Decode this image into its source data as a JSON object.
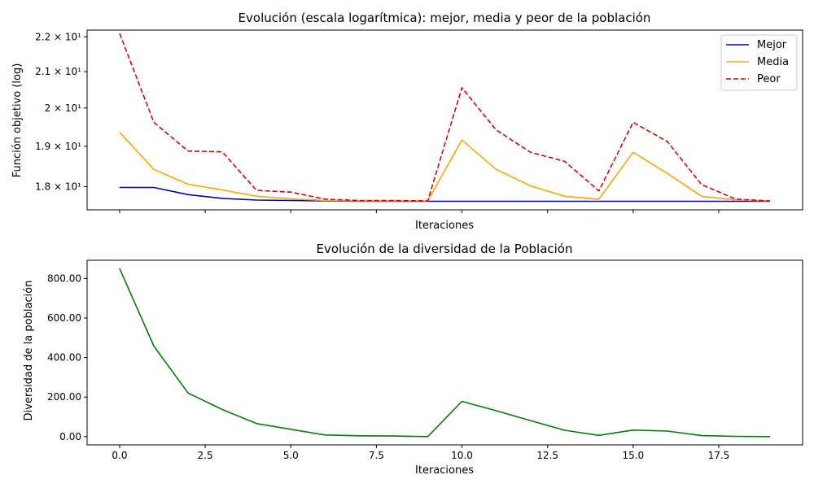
{
  "chart_data": [
    {
      "type": "line",
      "title": "Evolución (escala logarítmica): mejor, media y peor de la población",
      "xlabel": "Iteraciones",
      "ylabel": "Función objetivo (log)",
      "yscale": "log",
      "xlim": [
        -0.95,
        19.95
      ],
      "ylim": [
        17.45,
        22.2
      ],
      "x": [
        0,
        1,
        2,
        3,
        4,
        5,
        6,
        7,
        8,
        9,
        10,
        11,
        12,
        13,
        14,
        15,
        16,
        17,
        18,
        19
      ],
      "yticks": [
        {
          "value": 18,
          "label": "1.8 × 10¹"
        },
        {
          "value": 19,
          "label": "1.9 × 10¹"
        },
        {
          "value": 20,
          "label": "2 × 10¹"
        },
        {
          "value": 21,
          "label": "2.1 × 10¹"
        },
        {
          "value": 22,
          "label": "2.2 × 10¹"
        }
      ],
      "xticks_labeled": false,
      "legend": "top-right",
      "series": [
        {
          "name": "Mejor",
          "color": "#0000cc",
          "dash": "solid",
          "values": [
            17.98,
            17.98,
            17.81,
            17.72,
            17.68,
            17.67,
            17.66,
            17.65,
            17.65,
            17.65,
            17.65,
            17.65,
            17.65,
            17.65,
            17.65,
            17.65,
            17.65,
            17.65,
            17.65,
            17.65
          ]
        },
        {
          "name": "Media",
          "color": "#ffa500",
          "dash": "solid",
          "values": [
            19.36,
            18.42,
            18.06,
            17.92,
            17.77,
            17.71,
            17.67,
            17.66,
            17.66,
            17.66,
            19.16,
            18.42,
            18.02,
            17.77,
            17.7,
            18.85,
            18.32,
            17.77,
            17.68,
            17.66
          ]
        },
        {
          "name": "Peor",
          "color": "#dd0000",
          "dash": "dashed",
          "values": [
            22.1,
            19.62,
            18.88,
            18.86,
            17.91,
            17.87,
            17.7,
            17.67,
            17.67,
            17.66,
            20.55,
            19.42,
            18.85,
            18.62,
            17.9,
            19.62,
            19.12,
            18.05,
            17.7,
            17.66
          ]
        }
      ]
    },
    {
      "type": "line",
      "title": "Evolución de la diversidad de la Población",
      "xlabel": "Iteraciones",
      "ylabel": "Diversidad de la población",
      "xlim": [
        -0.95,
        19.95
      ],
      "ylim": [
        -42,
        892
      ],
      "x": [
        0,
        1,
        2,
        3,
        4,
        5,
        6,
        7,
        8,
        9,
        10,
        11,
        12,
        13,
        14,
        15,
        16,
        17,
        18,
        19
      ],
      "xticks": [
        {
          "value": 0,
          "label": "0.0"
        },
        {
          "value": 2.5,
          "label": "2.5"
        },
        {
          "value": 5,
          "label": "5.0"
        },
        {
          "value": 7.5,
          "label": "7.5"
        },
        {
          "value": 10,
          "label": "10.0"
        },
        {
          "value": 12.5,
          "label": "12.5"
        },
        {
          "value": 15,
          "label": "15.0"
        },
        {
          "value": 17.5,
          "label": "17.5"
        }
      ],
      "yticks": [
        {
          "value": 0,
          "label": "0.00"
        },
        {
          "value": 200,
          "label": "200.00"
        },
        {
          "value": 400,
          "label": "400.00"
        },
        {
          "value": 600,
          "label": "600.00"
        },
        {
          "value": 800,
          "label": "800.00"
        }
      ],
      "series": [
        {
          "color": "#008000",
          "dash": "solid",
          "values": [
            850,
            458,
            220,
            137,
            66,
            37,
            8,
            4,
            3,
            0,
            178,
            131,
            81,
            32,
            6,
            33,
            28,
            5,
            1,
            0
          ]
        }
      ]
    }
  ]
}
